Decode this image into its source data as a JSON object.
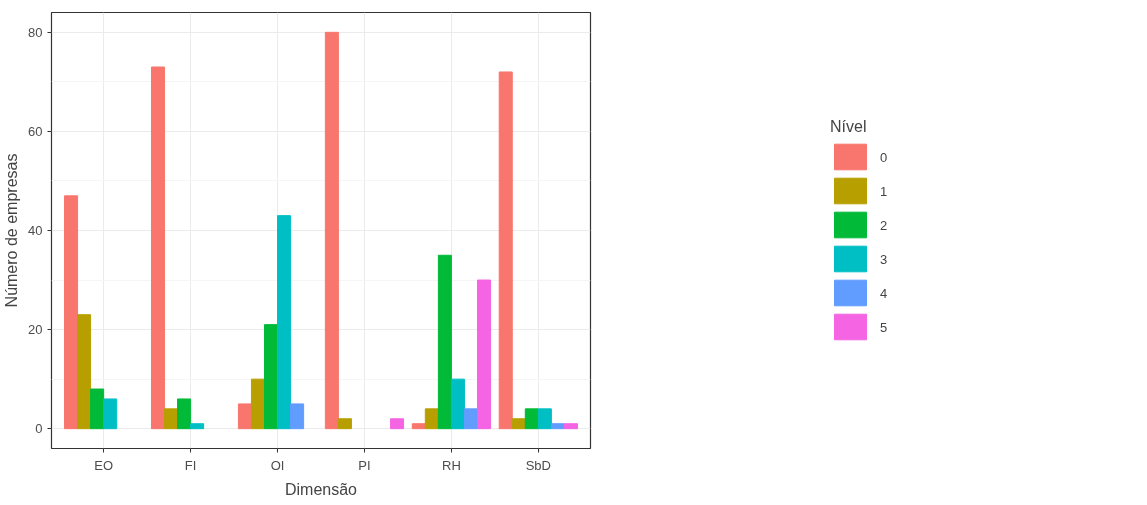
{
  "chart_data": {
    "type": "bar",
    "xlabel": "Dimensão",
    "ylabel": "Número de empresas",
    "legend_title": "Nível",
    "categories": [
      "EO",
      "FI",
      "OI",
      "PI",
      "RH",
      "SbD"
    ],
    "series": [
      {
        "name": "0",
        "color": "#f8766d",
        "values": [
          47,
          73,
          5,
          80,
          1,
          72
        ]
      },
      {
        "name": "1",
        "color": "#b79f00",
        "values": [
          23,
          4,
          10,
          2,
          4,
          2
        ]
      },
      {
        "name": "2",
        "color": "#00ba38",
        "values": [
          8,
          6,
          21,
          null,
          35,
          4
        ]
      },
      {
        "name": "3",
        "color": "#00bfc4",
        "values": [
          6,
          1,
          43,
          null,
          10,
          4
        ]
      },
      {
        "name": "4",
        "color": "#619cff",
        "values": [
          null,
          null,
          5,
          null,
          4,
          1
        ]
      },
      {
        "name": "5",
        "color": "#f564e3",
        "values": [
          null,
          null,
          null,
          2,
          30,
          1
        ]
      }
    ],
    "ylim": [
      -4,
      84
    ],
    "yticks": [
      0,
      20,
      40,
      60,
      80
    ],
    "grid": true,
    "legend": "right"
  }
}
